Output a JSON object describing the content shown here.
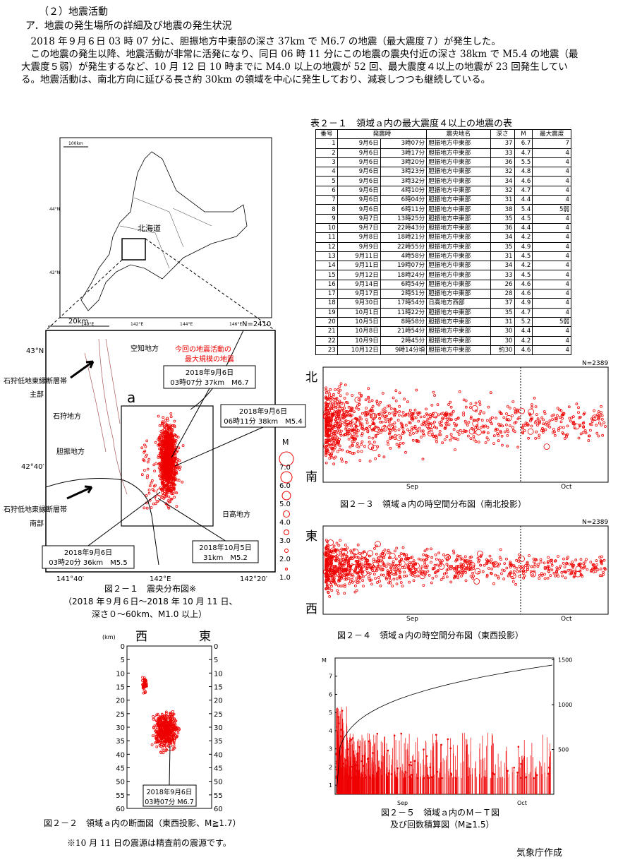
{
  "heading": "（２）地震活動",
  "subheading": "ア．地震の発生場所の詳細及び地震の発生状況",
  "paragraphs": [
    "2018 年９月６日 03 時 07 分に、胆振地方中東部の深さ 37km で M6.7 の地震（最大震度７）が発生した。",
    "この地震の発生以降、地震活動が非常に活発になり、同日 06 時 11 分にこの地震の震央付近の深さ 38km で M5.4 の地震（最大震度５弱）が発生するなど、10 月 12 日 10 時までに M4.0 以上の地震が 52 回、最大震度４以上の地震が 23 回発生している。地震活動は、南北方向に延びる長さ約 30km の領域を中心に発生しており、減衰しつつも継続している。"
  ],
  "table": {
    "title": "表２－１　領域ａ内の最大震度４以上の地震の表",
    "columns": [
      "番号",
      "発震時",
      "震央地名",
      "深さ",
      "M",
      "最大震度"
    ],
    "rows": [
      [
        "1",
        "9月6日",
        "3時07分",
        "胆振地方中東部",
        "37",
        "6.7",
        "7"
      ],
      [
        "2",
        "9月6日",
        "3時17分",
        "胆振地方中東部",
        "33",
        "4.7",
        "4"
      ],
      [
        "3",
        "9月6日",
        "3時20分",
        "胆振地方中東部",
        "36",
        "5.5",
        "4"
      ],
      [
        "4",
        "9月6日",
        "3時23分",
        "胆振地方中東部",
        "32",
        "4.8",
        "4"
      ],
      [
        "5",
        "9月6日",
        "3時32分",
        "胆振地方中東部",
        "34",
        "4.6",
        "4"
      ],
      [
        "6",
        "9月6日",
        "4時10分",
        "胆振地方中東部",
        "32",
        "4.7",
        "4"
      ],
      [
        "7",
        "9月6日",
        "6時04分",
        "胆振地方中東部",
        "31",
        "4.4",
        "4"
      ],
      [
        "8",
        "9月6日",
        "6時11分",
        "胆振地方中東部",
        "38",
        "5.4",
        "5弱"
      ],
      [
        "9",
        "9月7日",
        "13時25分",
        "胆振地方中東部",
        "35",
        "4.5",
        "4"
      ],
      [
        "10",
        "9月7日",
        "22時43分",
        "胆振地方中東部",
        "36",
        "4.4",
        "4"
      ],
      [
        "11",
        "9月8日",
        "18時21分",
        "胆振地方中東部",
        "34",
        "4.2",
        "4"
      ],
      [
        "12",
        "9月9日",
        "22時55分",
        "胆振地方中東部",
        "35",
        "4.9",
        "4"
      ],
      [
        "13",
        "9月11日",
        "4時58分",
        "胆振地方中東部",
        "31",
        "4.5",
        "4"
      ],
      [
        "14",
        "9月11日",
        "19時07分",
        "胆振地方中東部",
        "34",
        "4.2",
        "4"
      ],
      [
        "15",
        "9月12日",
        "18時24分",
        "胆振地方中東部",
        "33",
        "4.5",
        "4"
      ],
      [
        "16",
        "9月14日",
        "6時54分",
        "胆振地方中東部",
        "26",
        "4.6",
        "4"
      ],
      [
        "17",
        "9月17日",
        "2時51分",
        "胆振地方中東部",
        "28",
        "4.6",
        "4"
      ],
      [
        "18",
        "9月30日",
        "17時54分",
        "日高地方西部",
        "37",
        "4.9",
        "4"
      ],
      [
        "19",
        "10月1日",
        "11時22分",
        "胆振地方中東部",
        "35",
        "4.7",
        "4"
      ],
      [
        "20",
        "10月5日",
        "8時58分",
        "胆振地方中東部",
        "31",
        "5.2",
        "5弱"
      ],
      [
        "21",
        "10月8日",
        "21時54分",
        "胆振地方中東部",
        "30",
        "4.4",
        "4"
      ],
      [
        "22",
        "10月9日",
        "2時45分",
        "胆振地方中東部",
        "30",
        "4.2",
        "4"
      ],
      [
        "23",
        "10月12日",
        "9時14分頃",
        "胆振地方中東部",
        "約30",
        "4.6",
        "4"
      ]
    ]
  },
  "fig21": {
    "overview": {
      "scale": "100km",
      "lat_labels": [
        "44°N",
        "42°N"
      ],
      "lon_labels": [
        "140°E",
        "142°E",
        "144°E",
        "146°E"
      ],
      "region": "北海道"
    },
    "inset": {
      "scale": "20km",
      "count": "N=2410",
      "lat_labels": [
        "43°N",
        "42°40′"
      ],
      "lon_labels": [
        "141°40′",
        "142°E",
        "142°20′"
      ],
      "area": "a",
      "places": [
        "空知地方",
        "石狩地方",
        "胆振地方",
        "日高地方"
      ],
      "largest_note": [
        "今回の地震活動の",
        "最大規模の地震"
      ],
      "fault_main": [
        "石狩低地東縁断層帯",
        "主部"
      ],
      "fault_south": [
        "石狩低地東縁断層帯",
        "南部"
      ],
      "callouts": [
        [
          "2018年9月6日",
          "03時07分 37km　M6.7"
        ],
        [
          "2018年9月6日",
          "06時11分 38km　M5.4"
        ],
        [
          "2018年9月6日",
          "03時20分 36km　M5.5"
        ],
        [
          "2018年10月5日",
          "31km　M5.2"
        ]
      ],
      "magnitude": {
        "label": "M",
        "ticks": [
          "7.0",
          "6.0",
          "5.0",
          "4.0",
          "3.0",
          "2.0",
          "1.0"
        ]
      }
    },
    "caption": "図２－１　震央分布図※",
    "subcaption": [
      "（2018 年９月６日～2018 年 10 月 11 日、",
      "深さ０～60km、M1.0 以上）"
    ]
  },
  "fig22": {
    "unit": "(km)",
    "west": "西",
    "east": "東",
    "ylim": [
      0,
      60
    ],
    "yticks": [
      0,
      5,
      10,
      15,
      20,
      25,
      30,
      35,
      40,
      45,
      50,
      55,
      60
    ],
    "callout": [
      "2018年9月6日",
      "03時07分 M6.7"
    ],
    "caption": "図２－２　領域ａ内の断面図（東西投影、M≧1.7）"
  },
  "fig23": {
    "north": "北",
    "south": "南",
    "count": "N=2389",
    "months": [
      "Sep",
      "Oct"
    ],
    "caption": "図２－３　領域ａ内の時空間分布図（南北投影）"
  },
  "fig24": {
    "east": "東",
    "west": "西",
    "count": "N=2389",
    "months": [
      "Sep",
      "Oct"
    ],
    "caption": "図２－４　領域ａ内の時空間分布図（東西投影）"
  },
  "fig25": {
    "ylabel": "M",
    "ylim": [
      0.5,
      8
    ],
    "yticks": [
      1,
      2,
      3,
      4,
      5,
      6,
      7
    ],
    "y2lim": [
      0,
      1520
    ],
    "y2ticks": [
      500,
      1000,
      1500
    ],
    "months": [
      "Sep",
      "Oct"
    ],
    "caption": [
      "図２－５　領域ａ内のＭ－Ｔ図",
      "及び回数積算図（M≧1.5）"
    ]
  },
  "footnote": "※10 月 11 日の震源は精査前の震源です。",
  "credit": "気象庁作成"
}
